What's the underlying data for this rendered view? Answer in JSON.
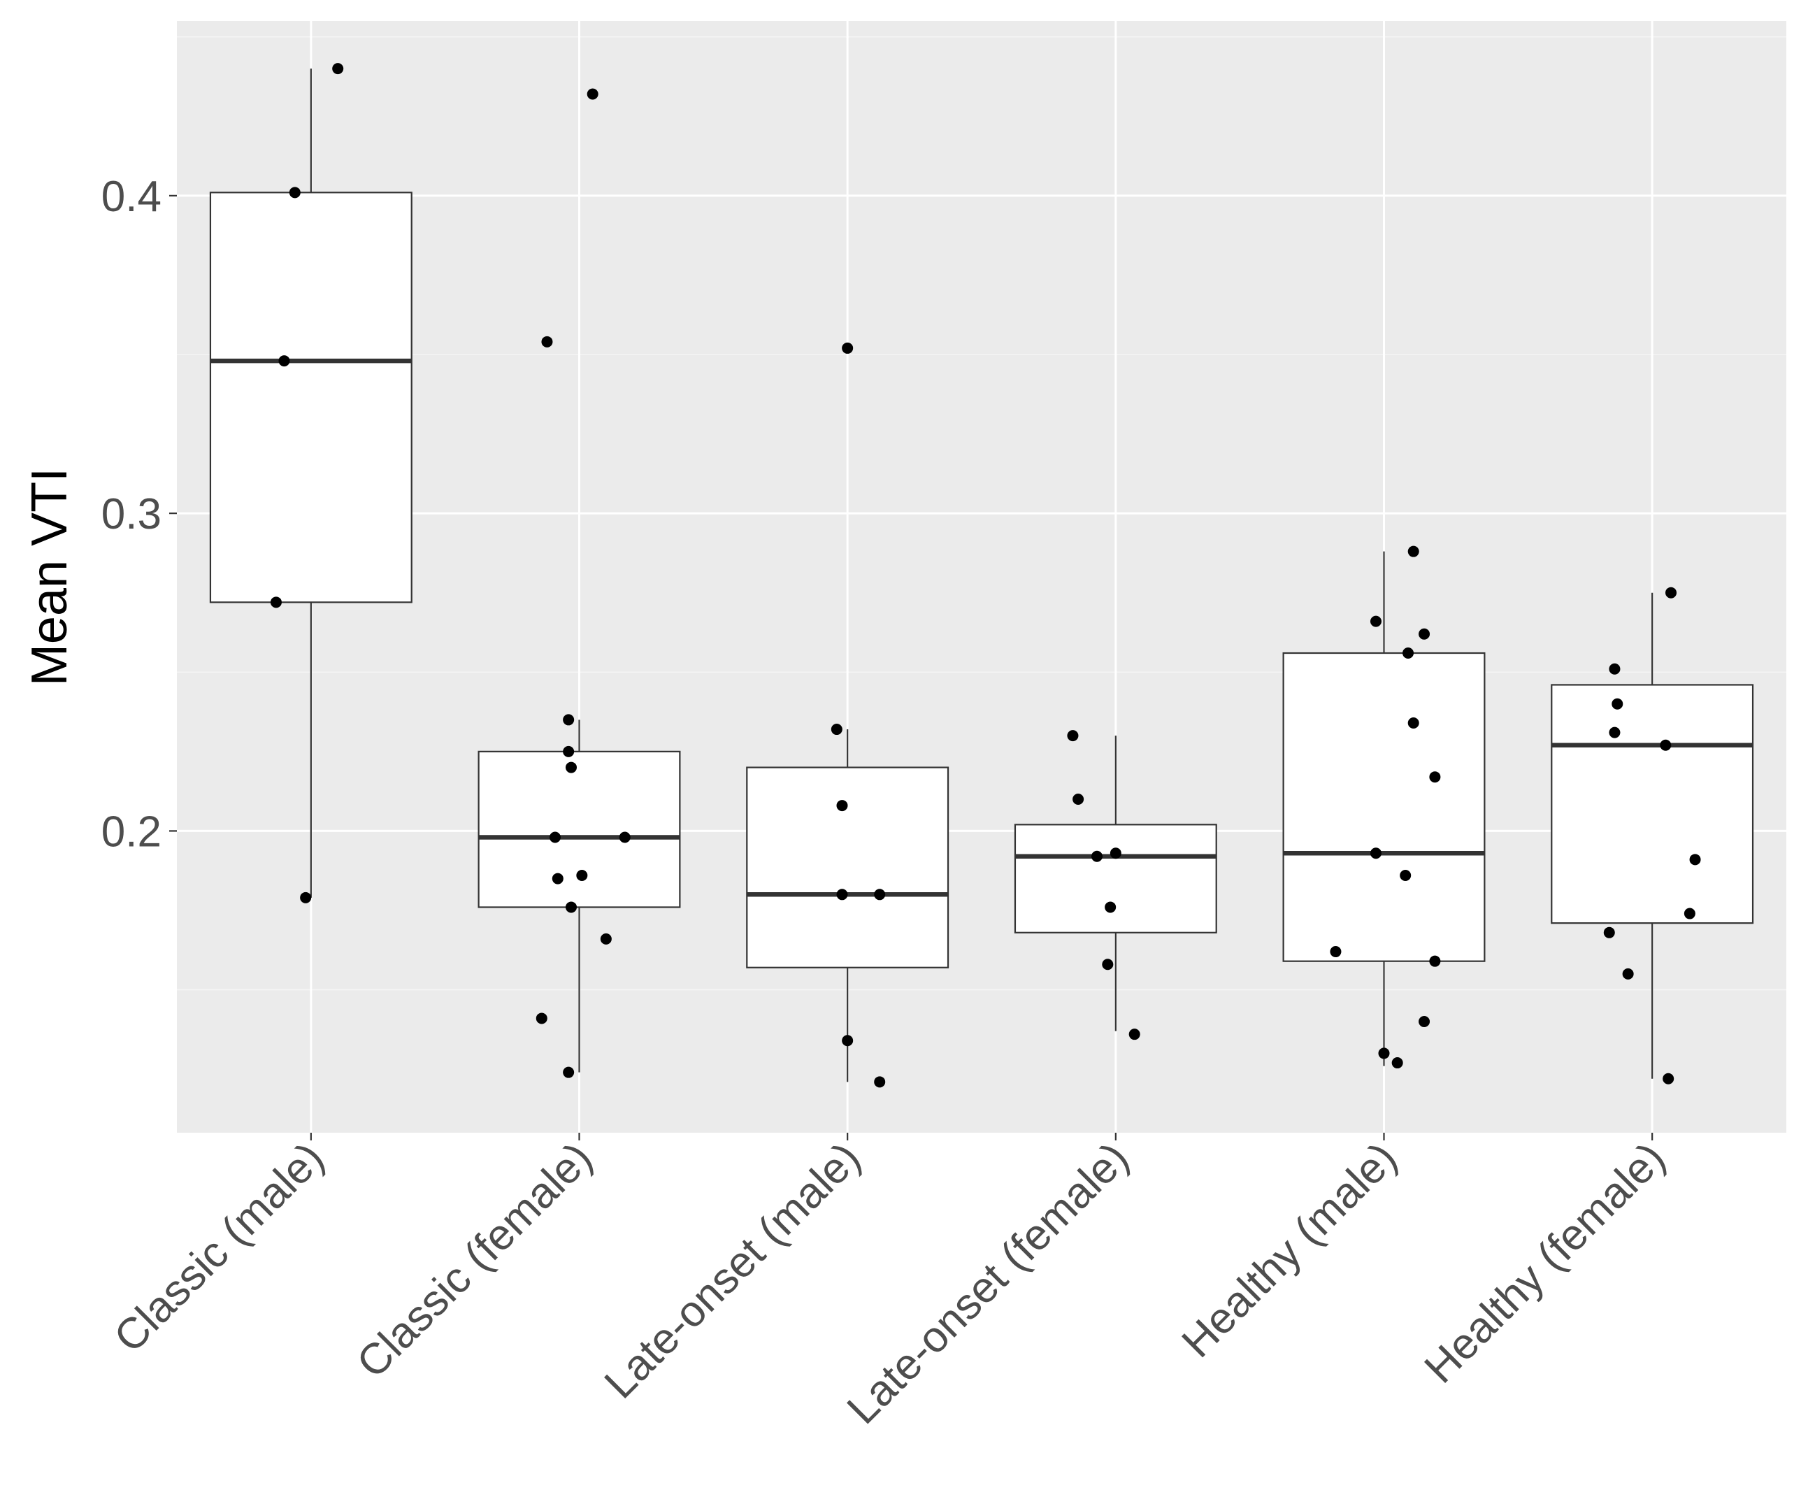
{
  "chart_data": {
    "type": "boxplot",
    "title": "",
    "xlabel": "",
    "ylabel": "Mean VTI",
    "ylim": [
      0.105,
      0.455
    ],
    "yticks": [
      0.2,
      0.3,
      0.4
    ],
    "ytick_labels": [
      "0.2",
      "0.3",
      "0.4"
    ],
    "categories": [
      "Classic (male)",
      "Classic (female)",
      "Late-onset (male)",
      "Late-onset (female)",
      "Healthy (male)",
      "Healthy (female)"
    ],
    "boxes": [
      {
        "q1": 0.272,
        "median": 0.348,
        "q3": 0.401,
        "whisker_low": 0.179,
        "whisker_high": 0.44
      },
      {
        "q1": 0.176,
        "median": 0.198,
        "q3": 0.225,
        "whisker_low": 0.124,
        "whisker_high": 0.235
      },
      {
        "q1": 0.157,
        "median": 0.18,
        "q3": 0.22,
        "whisker_low": 0.121,
        "whisker_high": 0.232
      },
      {
        "q1": 0.168,
        "median": 0.192,
        "q3": 0.202,
        "whisker_low": 0.137,
        "whisker_high": 0.23
      },
      {
        "q1": 0.159,
        "median": 0.193,
        "q3": 0.256,
        "whisker_low": 0.126,
        "whisker_high": 0.288
      },
      {
        "q1": 0.171,
        "median": 0.227,
        "q3": 0.246,
        "whisker_low": 0.122,
        "whisker_high": 0.275
      }
    ],
    "points": [
      [
        {
          "dx": 0.1,
          "y": 0.44
        },
        {
          "dx": -0.06,
          "y": 0.401
        },
        {
          "dx": -0.1,
          "y": 0.348
        },
        {
          "dx": -0.13,
          "y": 0.272
        },
        {
          "dx": -0.02,
          "y": 0.179
        }
      ],
      [
        {
          "dx": 0.05,
          "y": 0.432
        },
        {
          "dx": -0.12,
          "y": 0.354
        },
        {
          "dx": -0.04,
          "y": 0.235
        },
        {
          "dx": -0.04,
          "y": 0.225
        },
        {
          "dx": -0.03,
          "y": 0.22
        },
        {
          "dx": -0.09,
          "y": 0.198
        },
        {
          "dx": 0.17,
          "y": 0.198
        },
        {
          "dx": 0.01,
          "y": 0.186
        },
        {
          "dx": -0.08,
          "y": 0.185
        },
        {
          "dx": -0.03,
          "y": 0.176
        },
        {
          "dx": 0.1,
          "y": 0.166
        },
        {
          "dx": -0.14,
          "y": 0.141
        },
        {
          "dx": -0.04,
          "y": 0.124
        }
      ],
      [
        {
          "dx": 0.0,
          "y": 0.352
        },
        {
          "dx": -0.04,
          "y": 0.232
        },
        {
          "dx": -0.02,
          "y": 0.208
        },
        {
          "dx": -0.02,
          "y": 0.18
        },
        {
          "dx": 0.12,
          "y": 0.18
        },
        {
          "dx": 0.0,
          "y": 0.134
        },
        {
          "dx": 0.12,
          "y": 0.121
        }
      ],
      [
        {
          "dx": -0.16,
          "y": 0.23
        },
        {
          "dx": -0.14,
          "y": 0.21
        },
        {
          "dx": -0.07,
          "y": 0.192
        },
        {
          "dx": 0.0,
          "y": 0.193
        },
        {
          "dx": -0.02,
          "y": 0.176
        },
        {
          "dx": -0.03,
          "y": 0.158
        },
        {
          "dx": 0.07,
          "y": 0.136
        }
      ],
      [
        {
          "dx": 0.11,
          "y": 0.288
        },
        {
          "dx": -0.03,
          "y": 0.266
        },
        {
          "dx": 0.15,
          "y": 0.262
        },
        {
          "dx": 0.09,
          "y": 0.256
        },
        {
          "dx": 0.11,
          "y": 0.234
        },
        {
          "dx": 0.19,
          "y": 0.217
        },
        {
          "dx": -0.03,
          "y": 0.193
        },
        {
          "dx": 0.08,
          "y": 0.186
        },
        {
          "dx": -0.18,
          "y": 0.162
        },
        {
          "dx": 0.19,
          "y": 0.159
        },
        {
          "dx": 0.15,
          "y": 0.14
        },
        {
          "dx": 0.0,
          "y": 0.13
        },
        {
          "dx": 0.05,
          "y": 0.127
        }
      ],
      [
        {
          "dx": 0.07,
          "y": 0.275
        },
        {
          "dx": -0.14,
          "y": 0.251
        },
        {
          "dx": -0.13,
          "y": 0.24
        },
        {
          "dx": -0.14,
          "y": 0.231
        },
        {
          "dx": 0.05,
          "y": 0.227
        },
        {
          "dx": 0.16,
          "y": 0.191
        },
        {
          "dx": 0.14,
          "y": 0.174
        },
        {
          "dx": -0.16,
          "y": 0.168
        },
        {
          "dx": -0.09,
          "y": 0.155
        },
        {
          "dx": 0.06,
          "y": 0.122
        }
      ]
    ],
    "colors": {
      "panel_bg": "#ebebeb",
      "grid_major": "#ffffff",
      "grid_minor": "#f5f5f5",
      "box_fill": "#ffffff",
      "box_stroke": "#333333",
      "point": "#000000",
      "tick_text": "#4d4d4d"
    }
  }
}
